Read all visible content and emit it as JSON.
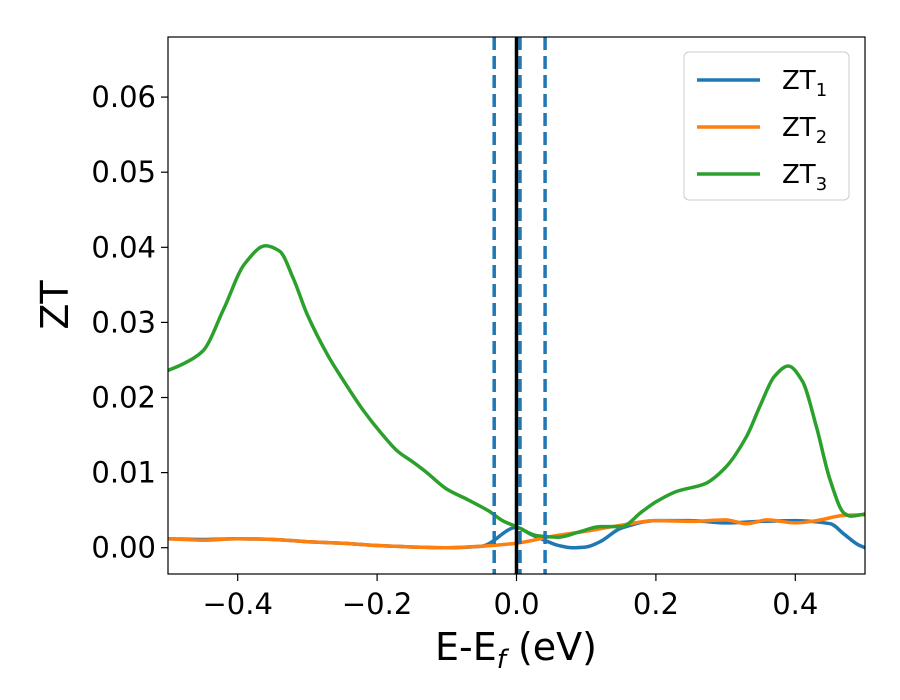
{
  "chart_data": {
    "type": "line",
    "xlabel": "E-E",
    "xlabel_sub": "f",
    "xlabel_unit": " (eV)",
    "ylabel": "ZT",
    "xlim": [
      -0.5,
      0.5
    ],
    "ylim": [
      -0.0035,
      0.068
    ],
    "xticks": [
      -0.4,
      -0.2,
      0.0,
      0.2,
      0.4
    ],
    "xtick_labels": [
      "−0.4",
      "−0.2",
      "0.0",
      "0.2",
      "0.4"
    ],
    "yticks": [
      0.0,
      0.01,
      0.02,
      0.03,
      0.04,
      0.05,
      0.06
    ],
    "ytick_labels": [
      "0.00",
      "0.01",
      "0.02",
      "0.03",
      "0.04",
      "0.05",
      "0.06"
    ],
    "grid": false,
    "legend_position": "top-right",
    "series": [
      {
        "name": "ZT",
        "name_sub": "1",
        "color": "#1f77b4",
        "x": [
          -0.5,
          -0.45,
          -0.4,
          -0.35,
          -0.3,
          -0.25,
          -0.2,
          -0.15,
          -0.1,
          -0.05,
          0.0,
          0.02,
          0.04,
          0.06,
          0.08,
          0.1,
          0.12,
          0.15,
          0.2,
          0.25,
          0.3,
          0.35,
          0.4,
          0.45,
          0.47,
          0.49,
          0.5
        ],
        "y": [
          0.0012,
          0.0011,
          0.0012,
          0.0011,
          0.0008,
          0.0006,
          0.0003,
          0.0001,
          0.0,
          0.0002,
          0.0027,
          0.0018,
          0.001,
          0.0003,
          0.0,
          0.0001,
          0.0008,
          0.0026,
          0.0036,
          0.0036,
          0.0033,
          0.0035,
          0.0036,
          0.0032,
          0.0018,
          0.0004,
          0.0
        ]
      },
      {
        "name": "ZT",
        "name_sub": "2",
        "color": "#ff7f0e",
        "x": [
          -0.5,
          -0.45,
          -0.4,
          -0.35,
          -0.3,
          -0.25,
          -0.2,
          -0.15,
          -0.1,
          -0.05,
          0.0,
          0.05,
          0.1,
          0.15,
          0.2,
          0.25,
          0.3,
          0.33,
          0.36,
          0.4,
          0.43,
          0.47,
          0.5
        ],
        "y": [
          0.0012,
          0.001,
          0.0012,
          0.0011,
          0.0008,
          0.0006,
          0.0003,
          0.0001,
          0.0,
          0.0002,
          0.0006,
          0.0015,
          0.0022,
          0.003,
          0.0036,
          0.0035,
          0.0037,
          0.0032,
          0.0037,
          0.0033,
          0.0036,
          0.0043,
          0.0044
        ]
      },
      {
        "name": "ZT",
        "name_sub": "3",
        "color": "#2ca02c",
        "x": [
          -0.5,
          -0.48,
          -0.45,
          -0.42,
          -0.39,
          -0.36,
          -0.34,
          -0.32,
          -0.3,
          -0.27,
          -0.25,
          -0.22,
          -0.19,
          -0.17,
          -0.15,
          -0.13,
          -0.1,
          -0.07,
          -0.04,
          -0.02,
          0.0,
          0.03,
          0.06,
          0.09,
          0.12,
          0.15,
          0.18,
          0.2,
          0.23,
          0.27,
          0.3,
          0.33,
          0.35,
          0.37,
          0.39,
          0.41,
          0.43,
          0.45,
          0.47,
          0.48,
          0.5
        ],
        "y": [
          0.0236,
          0.0244,
          0.0262,
          0.0318,
          0.0378,
          0.0402,
          0.0395,
          0.0358,
          0.031,
          0.0255,
          0.0225,
          0.0183,
          0.0148,
          0.0128,
          0.0115,
          0.0101,
          0.0078,
          0.0064,
          0.0049,
          0.0036,
          0.0028,
          0.0016,
          0.0014,
          0.0021,
          0.0028,
          0.0028,
          0.0048,
          0.0061,
          0.0075,
          0.0085,
          0.0107,
          0.0148,
          0.019,
          0.0228,
          0.0242,
          0.0222,
          0.0162,
          0.009,
          0.0046,
          0.0042,
          0.0045
        ]
      }
    ],
    "vlines": [
      {
        "x": -0.032,
        "color": "#1f77b4",
        "style": "dashed"
      },
      {
        "x": 0.005,
        "color": "#1f77b4",
        "style": "dashed"
      },
      {
        "x": 0.041,
        "color": "#1f77b4",
        "style": "dashed"
      },
      {
        "x": 0.0,
        "color": "#000000",
        "style": "solid"
      }
    ]
  }
}
